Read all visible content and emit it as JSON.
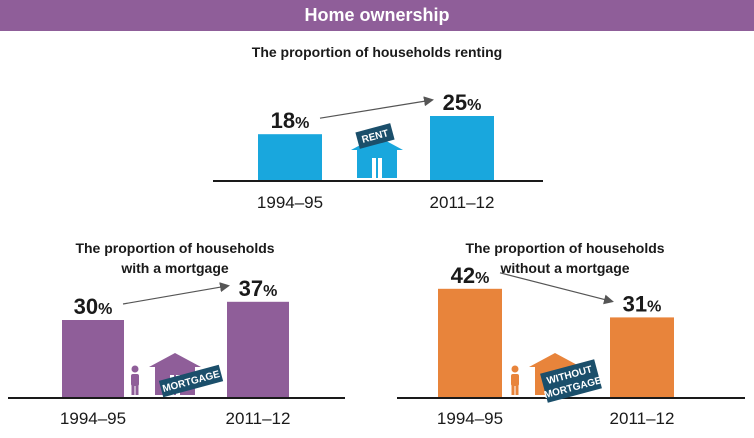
{
  "header": {
    "title": "Home ownership"
  },
  "colors": {
    "banner": "#8f5e99",
    "renting": "#19a7dd",
    "mortgage": "#8f5e99",
    "no_mortgage": "#e8843b",
    "badge": "#1b4f6b",
    "axis": "#1a1a1a",
    "arrow": "#555555"
  },
  "chart_data": [
    {
      "type": "bar",
      "title": "The proportion of households renting",
      "categories": [
        "1994–95",
        "2011–12"
      ],
      "values": [
        18,
        25
      ],
      "value_labels": [
        "18",
        "25"
      ],
      "unit": "%",
      "icon": "house-icon",
      "badge": [
        "RENT"
      ],
      "color": "#19a7dd"
    },
    {
      "type": "bar",
      "title_lines": [
        "The proportion of households",
        "with a mortgage"
      ],
      "categories": [
        "1994–95",
        "2011–12"
      ],
      "values": [
        30,
        37
      ],
      "value_labels": [
        "30",
        "37"
      ],
      "unit": "%",
      "icon": "house-person-icon",
      "badge": [
        "MORTGAGE"
      ],
      "color": "#8f5e99"
    },
    {
      "type": "bar",
      "title_lines": [
        "The proportion of households",
        "without a mortgage"
      ],
      "categories": [
        "1994–95",
        "2011–12"
      ],
      "values": [
        42,
        31
      ],
      "value_labels": [
        "42",
        "31"
      ],
      "unit": "%",
      "icon": "house-person-icon",
      "badge": [
        "WITHOUT",
        "MORTGAGE"
      ],
      "color": "#e8843b"
    }
  ]
}
